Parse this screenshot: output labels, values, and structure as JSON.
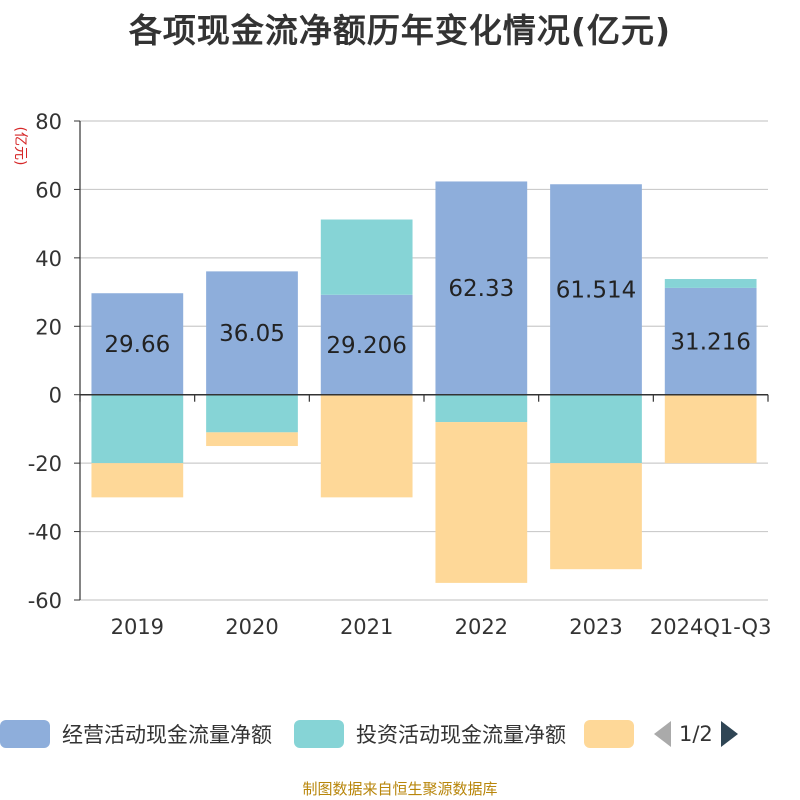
{
  "title": "各项现金流净额历年变化情况(亿元)",
  "unit_label": "(亿元)",
  "source": "制图数据来自恒生聚源数据库",
  "legend": {
    "items": [
      {
        "label": "经营活动现金流量净额",
        "color": "#8eaedb"
      },
      {
        "label": "投资活动现金流量净额",
        "color": "#86d4d6"
      },
      {
        "label": "",
        "color": "#fed898"
      }
    ],
    "page": "1/2"
  },
  "chart_data": {
    "type": "bar",
    "stacked": true,
    "categories": [
      "2019",
      "2020",
      "2021",
      "2022",
      "2023",
      "2024Q1-Q3"
    ],
    "series": [
      {
        "name": "经营活动现金流量净额",
        "color": "#8eaedb",
        "values": [
          29.66,
          36.05,
          29.206,
          62.33,
          61.514,
          31.216
        ],
        "labels": [
          "29.66",
          "36.05",
          "29.206",
          "62.33",
          "61.514",
          "31.216"
        ]
      },
      {
        "name": "投资活动现金流量净额",
        "color": "#86d4d6",
        "values": [
          -20,
          -11,
          22,
          -8,
          -20,
          2.6
        ]
      },
      {
        "color": "#fed898",
        "values": [
          -10,
          -4,
          -30,
          -47,
          -31,
          -20
        ]
      }
    ],
    "ylim": [
      -60,
      80
    ],
    "yticks": [
      -60,
      -40,
      -20,
      0,
      20,
      40,
      60,
      80
    ],
    "grid": true,
    "legend_position": "bottom"
  }
}
